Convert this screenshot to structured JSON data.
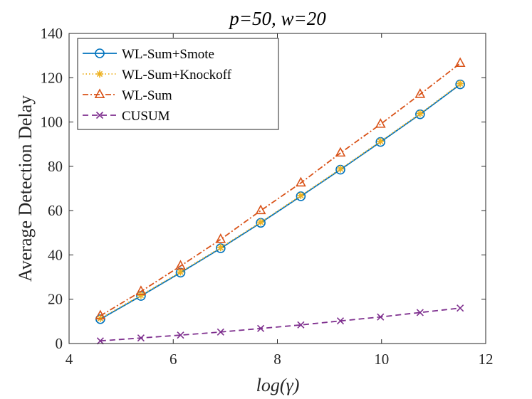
{
  "chart_data": {
    "type": "line",
    "title": "p=50, w=20",
    "xlabel": "log(γ)",
    "ylabel": "Average Detection Delay",
    "xlim": [
      4,
      12
    ],
    "ylim": [
      0,
      140
    ],
    "xticks": [
      4,
      6,
      8,
      10,
      12
    ],
    "yticks": [
      0,
      20,
      40,
      60,
      80,
      100,
      120,
      140
    ],
    "grid": false,
    "legend_position": "top-left",
    "x": [
      4.6,
      5.38,
      6.14,
      6.91,
      7.68,
      8.45,
      9.21,
      9.98,
      10.74,
      11.51
    ],
    "series": [
      {
        "name": "WL-Sum+Smote",
        "color": "#0072BD",
        "line": "solid",
        "marker": "circle",
        "values": [
          11,
          21.5,
          32,
          43,
          54.5,
          66.5,
          78.5,
          91,
          103.5,
          117
        ]
      },
      {
        "name": "WL-Sum+Knockoff",
        "color": "#EDB120",
        "line": "dotted",
        "marker": "asterisk",
        "values": [
          11.3,
          21.8,
          32.3,
          43.3,
          54.8,
          66.8,
          78.8,
          91.3,
          103.8,
          117.3
        ]
      },
      {
        "name": "WL-Sum",
        "color": "#D95319",
        "line": "dashdot",
        "marker": "triangle",
        "values": [
          12.5,
          23.5,
          35,
          47,
          60,
          72.5,
          86,
          99,
          112.5,
          126.5
        ]
      },
      {
        "name": "CUSUM",
        "color": "#7E2F8E",
        "line": "dashed",
        "marker": "x",
        "values": [
          1.2,
          2.5,
          3.8,
          5.2,
          6.8,
          8.4,
          10.2,
          12,
          14,
          16
        ]
      }
    ]
  }
}
